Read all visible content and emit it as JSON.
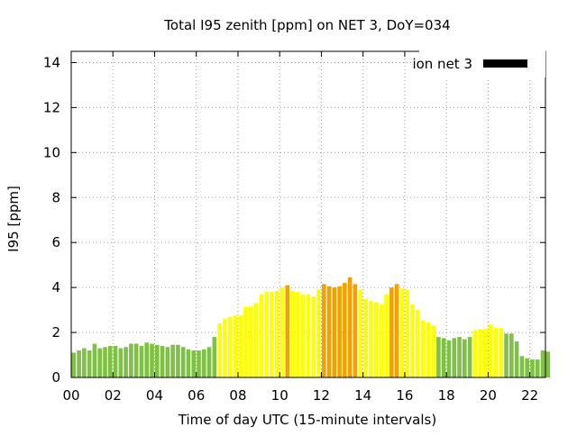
{
  "chart_data": {
    "type": "bar",
    "title": "Total I95 zenith [ppm] on NET 3, DoY=034",
    "xlabel": "Time of day UTC (15-minute intervals)",
    "ylabel": "I95 [ppm]",
    "ylim": [
      0,
      14.5
    ],
    "xlim": [
      0,
      22.75
    ],
    "y_ticks": [
      "0",
      "2",
      "4",
      "6",
      "8",
      "10",
      "12",
      "14"
    ],
    "x_ticks": [
      "00",
      "02",
      "04",
      "06",
      "08",
      "10",
      "12",
      "14",
      "16",
      "18",
      "20",
      "22"
    ],
    "grid": true,
    "legend": {
      "position": "top-right",
      "entries": [
        {
          "label": "ion net 3",
          "color": "#000000"
        }
      ]
    },
    "colors": {
      "green": "#7dc242",
      "yellow": "#ffff00",
      "orange": "#f5a000",
      "grid": "#a0a0a0"
    },
    "interval_hours": 0.25,
    "start_hour": 0,
    "values": [
      1.1,
      1.2,
      1.3,
      1.2,
      1.5,
      1.3,
      1.35,
      1.4,
      1.4,
      1.3,
      1.35,
      1.5,
      1.5,
      1.4,
      1.55,
      1.5,
      1.45,
      1.4,
      1.35,
      1.45,
      1.45,
      1.35,
      1.25,
      1.2,
      1.2,
      1.25,
      1.35,
      1.8,
      2.4,
      2.6,
      2.7,
      2.75,
      2.75,
      3.15,
      3.15,
      3.3,
      3.7,
      3.8,
      3.8,
      3.85,
      4.0,
      4.1,
      3.85,
      3.8,
      3.7,
      3.7,
      3.6,
      3.9,
      4.15,
      4.05,
      4.0,
      4.05,
      4.2,
      4.45,
      4.15,
      3.9,
      3.5,
      3.4,
      3.35,
      3.25,
      3.7,
      4.0,
      4.15,
      3.95,
      3.9,
      3.25,
      3.0,
      2.55,
      2.45,
      2.3,
      1.8,
      1.75,
      1.65,
      1.75,
      1.8,
      1.7,
      1.8,
      2.1,
      2.15,
      2.15,
      2.35,
      2.2,
      2.2,
      1.95,
      1.95,
      1.6,
      0.95,
      0.85,
      0.8,
      0.8,
      1.2,
      1.15
    ],
    "bar_colors": [
      "green",
      "green",
      "green",
      "green",
      "green",
      "green",
      "green",
      "green",
      "green",
      "green",
      "green",
      "green",
      "green",
      "green",
      "green",
      "green",
      "green",
      "green",
      "green",
      "green",
      "green",
      "green",
      "green",
      "green",
      "green",
      "green",
      "green",
      "green",
      "yellow",
      "yellow",
      "yellow",
      "yellow",
      "yellow",
      "yellow",
      "yellow",
      "yellow",
      "yellow",
      "yellow",
      "yellow",
      "yellow",
      "yellow",
      "orange",
      "yellow",
      "yellow",
      "yellow",
      "yellow",
      "yellow",
      "yellow",
      "orange",
      "orange",
      "orange",
      "orange",
      "orange",
      "orange",
      "orange",
      "yellow",
      "yellow",
      "yellow",
      "yellow",
      "yellow",
      "yellow",
      "orange",
      "orange",
      "yellow",
      "yellow",
      "yellow",
      "yellow",
      "yellow",
      "yellow",
      "yellow",
      "green",
      "green",
      "green",
      "green",
      "green",
      "green",
      "green",
      "yellow",
      "yellow",
      "yellow",
      "yellow",
      "yellow",
      "yellow",
      "green",
      "green",
      "green",
      "green",
      "green",
      "green",
      "green",
      "green",
      "green"
    ]
  }
}
